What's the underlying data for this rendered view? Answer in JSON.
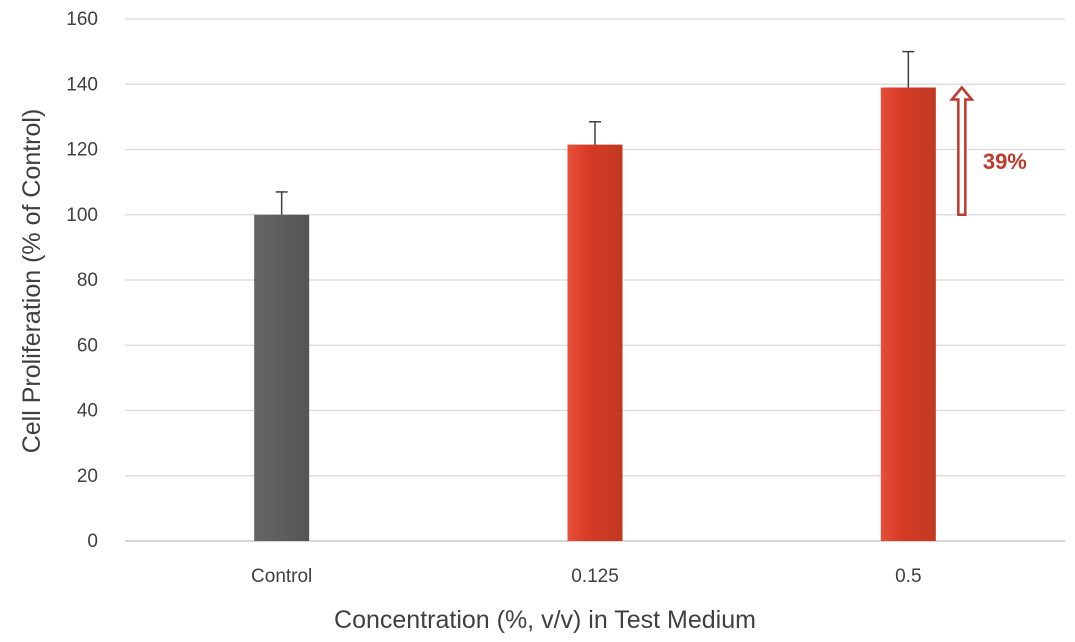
{
  "chart_data": {
    "type": "bar",
    "title": "",
    "xlabel": "Concentration (%, v/v) in Test Medium",
    "ylabel": "Cell Proliferation (% of Control)",
    "categories": [
      "Control",
      "0.125",
      "0.5"
    ],
    "values": [
      100,
      121.5,
      139
    ],
    "errors": [
      7,
      7,
      11
    ],
    "bar_colors": [
      "#595959",
      "#D63B26",
      "#D63B26"
    ],
    "ylim": [
      0,
      160
    ],
    "yticks": [
      "0",
      "20",
      "40",
      "60",
      "80",
      "100",
      "120",
      "140",
      "160"
    ],
    "grid": true,
    "legend": "none",
    "annotation": {
      "text": "39%",
      "category_index": 2,
      "arrow_from": 100,
      "arrow_to": 139,
      "color": "#C0392B"
    }
  }
}
